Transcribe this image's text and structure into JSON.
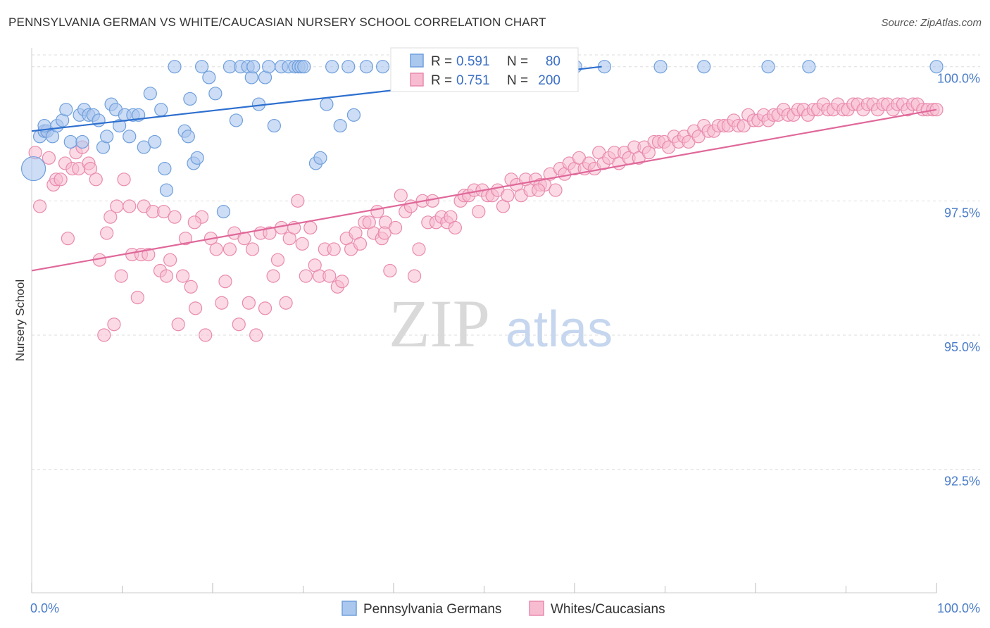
{
  "header": {
    "title": "PENNSYLVANIA GERMAN VS WHITE/CAUCASIAN NURSERY SCHOOL CORRELATION CHART",
    "source": "Source: ZipAtlas.com"
  },
  "watermark": {
    "zip": "ZIP",
    "atlas": "atlas"
  },
  "legend": {
    "series": [
      {
        "r_label": "R =",
        "r_value": "0.591",
        "n_label": "N =",
        "n_value": "80"
      },
      {
        "r_label": "R =",
        "r_value": "0.751",
        "n_label": "N =",
        "n_value": "200"
      }
    ]
  },
  "colors": {
    "blue_fill": "#aac7ee",
    "blue_stroke": "#6f9fdc",
    "blue_line": "#2d6fcf",
    "pink_fill": "#f7bcd0",
    "pink_stroke": "#e98aad",
    "pink_line": "#e0689a",
    "grid": "#dddddd",
    "tick_label": "#4a7cc9"
  },
  "chart_data": {
    "type": "scatter",
    "title": "PENNSYLVANIA GERMAN VS WHITE/CAUCASIAN NURSERY SCHOOL CORRELATION CHART",
    "xlabel": "",
    "ylabel": "Nursery School",
    "xlim": [
      0,
      100
    ],
    "ylim": [
      90.2,
      100.35
    ],
    "x_tick_labels": [
      "0.0%",
      "100.0%"
    ],
    "y_ticks": [
      92.5,
      95.0,
      97.5,
      100.0
    ],
    "y_tick_labels": [
      "92.5%",
      "95.0%",
      "97.5%",
      "100.0%"
    ],
    "grid": "horizontal dashed",
    "legend_position": "top-center",
    "series": [
      {
        "name": "Pennsylvania Germans",
        "color": "#aac7ee",
        "r": 0.591,
        "n": 80,
        "trend": {
          "x": [
            0,
            63
          ],
          "y": [
            98.8,
            100.0
          ]
        },
        "points": [
          [
            0.2,
            98.1
          ],
          [
            0.9,
            98.7
          ],
          [
            1.4,
            98.8
          ],
          [
            1.7,
            98.8
          ],
          [
            2.3,
            98.7
          ],
          [
            2.8,
            98.9
          ],
          [
            3.4,
            99.0
          ],
          [
            3.8,
            99.2
          ],
          [
            4.3,
            98.6
          ],
          [
            5.3,
            99.1
          ],
          [
            5.6,
            98.6
          ],
          [
            5.8,
            99.2
          ],
          [
            6.3,
            99.1
          ],
          [
            6.8,
            99.1
          ],
          [
            7.4,
            99.0
          ],
          [
            7.9,
            98.5
          ],
          [
            8.3,
            98.7
          ],
          [
            8.8,
            99.3
          ],
          [
            9.3,
            99.2
          ],
          [
            9.7,
            98.9
          ],
          [
            10.3,
            99.1
          ],
          [
            10.8,
            98.7
          ],
          [
            11.2,
            99.1
          ],
          [
            11.8,
            99.1
          ],
          [
            12.4,
            98.5
          ],
          [
            13.1,
            99.5
          ],
          [
            13.6,
            98.6
          ],
          [
            14.3,
            99.2
          ],
          [
            14.7,
            98.1
          ],
          [
            14.9,
            97.7
          ],
          [
            15.8,
            100.0
          ],
          [
            16.9,
            98.8
          ],
          [
            17.3,
            98.7
          ],
          [
            17.5,
            99.4
          ],
          [
            17.9,
            98.2
          ],
          [
            18.3,
            98.3
          ],
          [
            18.8,
            100.0
          ],
          [
            19.6,
            99.8
          ],
          [
            20.3,
            99.5
          ],
          [
            21.2,
            97.3
          ],
          [
            21.9,
            100.0
          ],
          [
            22.6,
            99.0
          ],
          [
            23.1,
            100.0
          ],
          [
            23.9,
            100.0
          ],
          [
            24.3,
            99.8
          ],
          [
            24.5,
            100.0
          ],
          [
            25.1,
            99.3
          ],
          [
            25.8,
            99.8
          ],
          [
            26.2,
            100.0
          ],
          [
            26.8,
            98.9
          ],
          [
            27.6,
            100.0
          ],
          [
            28.4,
            100.0
          ],
          [
            29.1,
            100.0
          ],
          [
            29.5,
            100.0
          ],
          [
            29.8,
            100.0
          ],
          [
            30.1,
            100.0
          ],
          [
            31.4,
            98.2
          ],
          [
            31.9,
            98.3
          ],
          [
            32.6,
            99.3
          ],
          [
            33.2,
            100.0
          ],
          [
            34.1,
            98.9
          ],
          [
            35.0,
            100.0
          ],
          [
            35.6,
            99.1
          ],
          [
            37.0,
            100.0
          ],
          [
            38.8,
            100.0
          ],
          [
            40.8,
            100.0
          ],
          [
            42.5,
            100.0
          ],
          [
            45.9,
            100.0
          ],
          [
            49.1,
            100.0
          ],
          [
            53.4,
            100.0
          ],
          [
            54.4,
            100.0
          ],
          [
            56.9,
            100.0
          ],
          [
            60.1,
            100.0
          ],
          [
            63.3,
            100.0
          ],
          [
            69.5,
            100.0
          ],
          [
            74.3,
            100.0
          ],
          [
            81.4,
            100.0
          ],
          [
            85.9,
            100.0
          ],
          [
            100.0,
            100.0
          ],
          [
            1.4,
            98.9
          ]
        ]
      },
      {
        "name": "Whites/Caucasians",
        "color": "#f7bcd0",
        "r": 0.751,
        "n": 200,
        "trend": {
          "x": [
            0,
            100
          ],
          "y": [
            96.2,
            99.2
          ]
        },
        "points": [
          [
            0.4,
            98.4
          ],
          [
            0.9,
            97.4
          ],
          [
            1.4,
            98.8
          ],
          [
            1.9,
            98.3
          ],
          [
            2.4,
            97.8
          ],
          [
            2.7,
            97.9
          ],
          [
            3.2,
            97.9
          ],
          [
            3.7,
            98.2
          ],
          [
            4.0,
            96.8
          ],
          [
            4.5,
            98.1
          ],
          [
            4.9,
            98.4
          ],
          [
            5.2,
            98.1
          ],
          [
            5.6,
            98.5
          ],
          [
            6.3,
            98.2
          ],
          [
            6.5,
            98.1
          ],
          [
            7.1,
            97.9
          ],
          [
            7.5,
            96.4
          ],
          [
            8.0,
            95.0
          ],
          [
            8.3,
            96.9
          ],
          [
            8.7,
            97.2
          ],
          [
            9.1,
            95.2
          ],
          [
            9.4,
            97.4
          ],
          [
            9.9,
            96.1
          ],
          [
            10.2,
            97.9
          ],
          [
            10.8,
            97.4
          ],
          [
            11.1,
            96.5
          ],
          [
            11.7,
            95.7
          ],
          [
            12.1,
            96.5
          ],
          [
            12.4,
            97.4
          ],
          [
            12.9,
            96.5
          ],
          [
            13.4,
            97.3
          ],
          [
            14.2,
            96.2
          ],
          [
            14.6,
            97.3
          ],
          [
            14.9,
            96.1
          ],
          [
            15.3,
            96.4
          ],
          [
            15.8,
            97.2
          ],
          [
            16.2,
            95.2
          ],
          [
            16.7,
            96.1
          ],
          [
            17.0,
            96.8
          ],
          [
            17.6,
            95.9
          ],
          [
            18.1,
            95.5
          ],
          [
            18.8,
            97.2
          ],
          [
            19.2,
            95.0
          ],
          [
            19.8,
            96.8
          ],
          [
            20.4,
            96.6
          ],
          [
            21.0,
            95.6
          ],
          [
            21.4,
            96.0
          ],
          [
            21.9,
            96.6
          ],
          [
            22.4,
            96.9
          ],
          [
            22.9,
            95.2
          ],
          [
            23.5,
            96.8
          ],
          [
            24.0,
            95.6
          ],
          [
            24.4,
            96.6
          ],
          [
            24.8,
            95.0
          ],
          [
            25.3,
            96.9
          ],
          [
            25.8,
            95.5
          ],
          [
            26.3,
            96.9
          ],
          [
            26.7,
            96.1
          ],
          [
            27.2,
            96.4
          ],
          [
            27.6,
            97.0
          ],
          [
            28.1,
            95.6
          ],
          [
            28.5,
            96.8
          ],
          [
            29.0,
            97.0
          ],
          [
            29.4,
            97.5
          ],
          [
            29.9,
            96.7
          ],
          [
            30.3,
            96.1
          ],
          [
            30.8,
            97.0
          ],
          [
            31.3,
            96.3
          ],
          [
            31.8,
            96.1
          ],
          [
            32.4,
            96.6
          ],
          [
            32.9,
            96.1
          ],
          [
            33.4,
            96.6
          ],
          [
            33.8,
            95.9
          ],
          [
            34.3,
            96.0
          ],
          [
            34.8,
            96.8
          ],
          [
            35.3,
            96.6
          ],
          [
            35.8,
            96.9
          ],
          [
            36.3,
            96.7
          ],
          [
            36.8,
            97.1
          ],
          [
            37.3,
            97.1
          ],
          [
            37.8,
            96.9
          ],
          [
            38.2,
            97.3
          ],
          [
            38.7,
            96.8
          ],
          [
            39.1,
            97.1
          ],
          [
            39.6,
            96.2
          ],
          [
            40.2,
            97.0
          ],
          [
            40.8,
            97.6
          ],
          [
            41.3,
            97.3
          ],
          [
            41.9,
            97.4
          ],
          [
            42.3,
            96.1
          ],
          [
            42.8,
            96.6
          ],
          [
            43.2,
            97.5
          ],
          [
            43.8,
            97.1
          ],
          [
            44.3,
            97.5
          ],
          [
            44.7,
            97.1
          ],
          [
            45.3,
            97.2
          ],
          [
            45.9,
            97.1
          ],
          [
            46.3,
            97.2
          ],
          [
            46.8,
            97.0
          ],
          [
            47.4,
            97.5
          ],
          [
            47.8,
            97.6
          ],
          [
            48.3,
            97.6
          ],
          [
            48.9,
            97.7
          ],
          [
            49.4,
            97.3
          ],
          [
            49.8,
            97.7
          ],
          [
            50.4,
            97.6
          ],
          [
            50.9,
            97.6
          ],
          [
            51.5,
            97.7
          ],
          [
            52.1,
            97.4
          ],
          [
            52.6,
            97.6
          ],
          [
            53.0,
            97.9
          ],
          [
            53.6,
            97.8
          ],
          [
            54.1,
            97.6
          ],
          [
            54.6,
            97.9
          ],
          [
            55.1,
            97.7
          ],
          [
            55.7,
            97.9
          ],
          [
            56.2,
            97.8
          ],
          [
            56.7,
            97.8
          ],
          [
            57.3,
            98.0
          ],
          [
            57.9,
            97.7
          ],
          [
            58.4,
            98.1
          ],
          [
            58.9,
            98.0
          ],
          [
            59.4,
            98.2
          ],
          [
            60.0,
            98.1
          ],
          [
            60.5,
            98.3
          ],
          [
            61.1,
            98.1
          ],
          [
            61.6,
            98.2
          ],
          [
            62.2,
            98.1
          ],
          [
            62.7,
            98.4
          ],
          [
            63.2,
            98.2
          ],
          [
            63.8,
            98.3
          ],
          [
            64.4,
            98.4
          ],
          [
            64.9,
            98.2
          ],
          [
            65.5,
            98.4
          ],
          [
            66.0,
            98.3
          ],
          [
            66.6,
            98.5
          ],
          [
            67.1,
            98.3
          ],
          [
            67.7,
            98.5
          ],
          [
            68.2,
            98.4
          ],
          [
            68.8,
            98.6
          ],
          [
            69.3,
            98.6
          ],
          [
            69.9,
            98.6
          ],
          [
            70.4,
            98.5
          ],
          [
            71.0,
            98.7
          ],
          [
            71.5,
            98.6
          ],
          [
            72.1,
            98.7
          ],
          [
            72.6,
            98.6
          ],
          [
            73.2,
            98.8
          ],
          [
            73.7,
            98.7
          ],
          [
            74.3,
            98.9
          ],
          [
            74.8,
            98.8
          ],
          [
            75.4,
            98.8
          ],
          [
            75.9,
            98.9
          ],
          [
            76.5,
            98.9
          ],
          [
            77.0,
            98.9
          ],
          [
            77.6,
            99.0
          ],
          [
            78.1,
            98.9
          ],
          [
            78.7,
            98.9
          ],
          [
            79.2,
            99.1
          ],
          [
            79.8,
            99.0
          ],
          [
            80.3,
            99.0
          ],
          [
            80.9,
            99.1
          ],
          [
            81.4,
            99.0
          ],
          [
            82.0,
            99.1
          ],
          [
            82.5,
            99.1
          ],
          [
            83.1,
            99.2
          ],
          [
            83.6,
            99.1
          ],
          [
            84.2,
            99.1
          ],
          [
            84.7,
            99.2
          ],
          [
            85.3,
            99.2
          ],
          [
            85.8,
            99.1
          ],
          [
            86.4,
            99.2
          ],
          [
            86.9,
            99.2
          ],
          [
            87.5,
            99.3
          ],
          [
            88.0,
            99.2
          ],
          [
            88.6,
            99.2
          ],
          [
            89.1,
            99.3
          ],
          [
            89.7,
            99.2
          ],
          [
            90.2,
            99.2
          ],
          [
            90.8,
            99.3
          ],
          [
            91.3,
            99.3
          ],
          [
            91.9,
            99.2
          ],
          [
            92.4,
            99.3
          ],
          [
            93.0,
            99.3
          ],
          [
            93.5,
            99.2
          ],
          [
            94.1,
            99.3
          ],
          [
            94.6,
            99.3
          ],
          [
            95.2,
            99.2
          ],
          [
            95.7,
            99.3
          ],
          [
            96.3,
            99.3
          ],
          [
            96.8,
            99.2
          ],
          [
            97.4,
            99.3
          ],
          [
            97.9,
            99.3
          ],
          [
            98.5,
            99.2
          ],
          [
            99.0,
            99.2
          ],
          [
            99.6,
            99.2
          ],
          [
            100.0,
            99.2
          ],
          [
            56.0,
            97.7
          ],
          [
            18.0,
            97.1
          ],
          [
            39.0,
            96.9
          ]
        ]
      }
    ],
    "bottom_legend": [
      "Pennsylvania Germans",
      "Whites/Caucasians"
    ]
  }
}
